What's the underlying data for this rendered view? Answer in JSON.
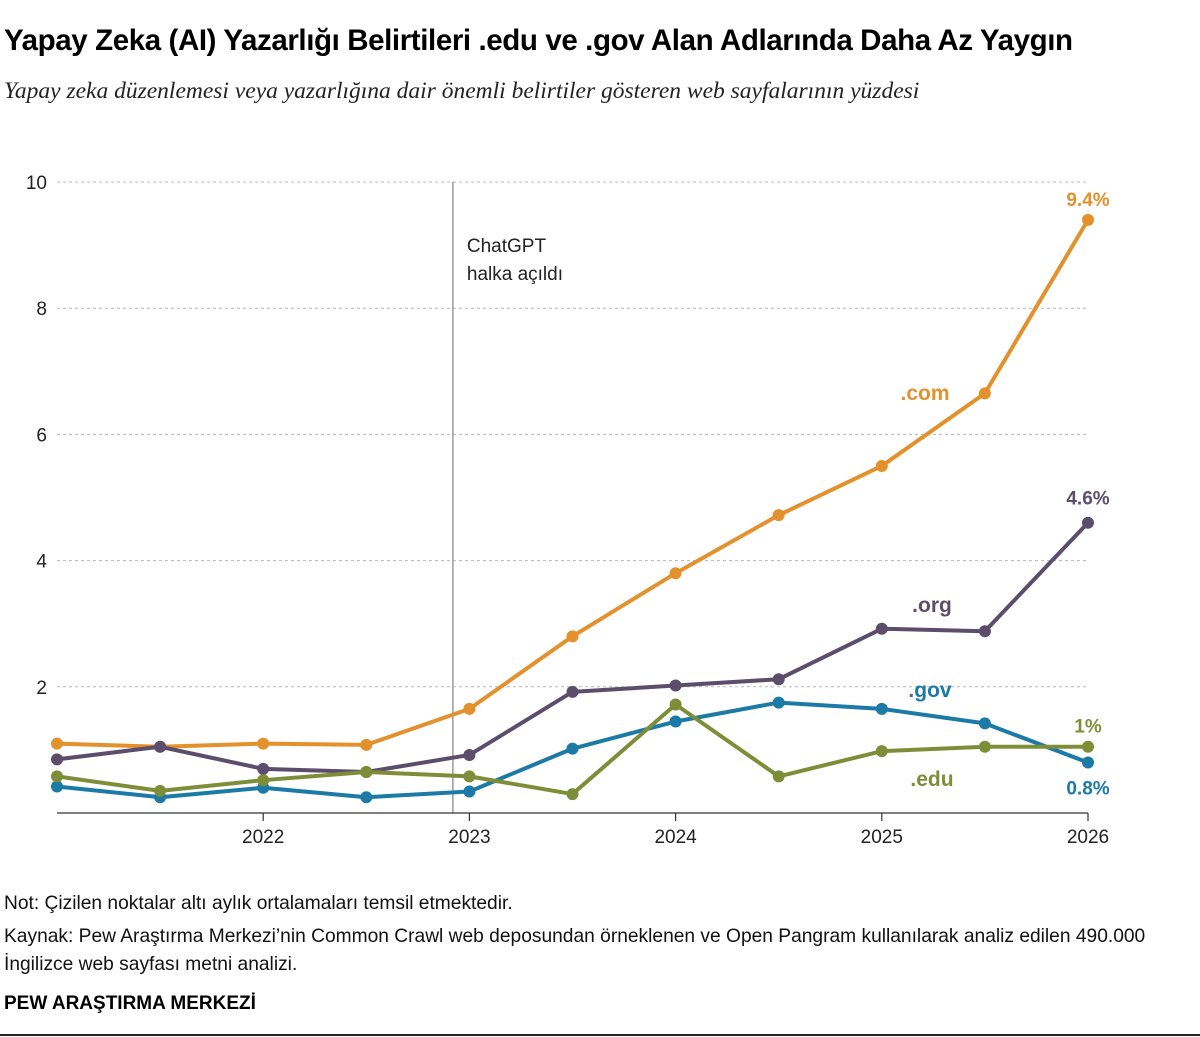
{
  "title": "Yapay Zeka (AI) Yazarlığı Belirtileri .edu ve .gov Alan Adlarında Daha Az Yaygın",
  "subtitle": "Yapay zeka düzenlemesi veya yazarlığına dair önemli belirtiler gösteren web sayfalarının yüzdesi",
  "note": "Not: Çizilen noktalar altı aylık ortalamaları temsil etmektedir.",
  "source": "Kaynak: Pew Araştırma Merkezi’nin Common Crawl web deposundan örneklenen ve Open Pangram kullanılarak analiz edilen 490.000 İngilizce web sayfası metni analizi.",
  "brand": "PEW ARAŞTIRMA MERKEZİ",
  "chart_data": {
    "type": "line",
    "title": "Yapay Zeka (AI) Yazarlığı Belirtileri .edu ve .gov Alan Adlarında Daha Az Yaygın",
    "subtitle": "Yapay zeka düzenlemesi veya yazarlığına dair önemli belirtiler gösteren web sayfalarının yüzdesi",
    "xlabel": "",
    "ylabel": "",
    "xlim": [
      2021,
      2026
    ],
    "ylim": [
      0,
      10
    ],
    "y_ticks": [
      2,
      4,
      6,
      8,
      10
    ],
    "x_ticks": [
      {
        "value": 2022,
        "label": "2022"
      },
      {
        "value": 2023,
        "label": "2023"
      },
      {
        "value": 2024,
        "label": "2024"
      },
      {
        "value": 2025,
        "label": "2025"
      },
      {
        "value": 2026,
        "label": "2026"
      }
    ],
    "grid": "horizontal-dashed",
    "x": [
      2021.0,
      2021.5,
      2022.0,
      2022.5,
      2023.0,
      2023.5,
      2024.0,
      2024.5,
      2025.0,
      2025.5,
      2026.0
    ],
    "series": [
      {
        "name": ".com",
        "color": "#e3912c",
        "values": [
          1.1,
          1.05,
          1.1,
          1.08,
          1.65,
          2.8,
          3.8,
          4.72,
          5.5,
          6.65,
          9.4
        ],
        "end_label": "9.4%"
      },
      {
        "name": ".org",
        "color": "#5b4d6b",
        "values": [
          0.85,
          1.05,
          0.7,
          0.65,
          0.92,
          1.92,
          2.02,
          2.12,
          2.92,
          2.88,
          4.6
        ],
        "end_label": "4.6%"
      },
      {
        "name": ".gov",
        "color": "#1b7aa6",
        "values": [
          0.42,
          0.25,
          0.4,
          0.25,
          0.34,
          1.02,
          1.45,
          1.75,
          1.65,
          1.42,
          0.8
        ],
        "end_label": "0.8%"
      },
      {
        "name": ".edu",
        "color": "#7e8e38",
        "values": [
          0.58,
          0.35,
          0.52,
          0.65,
          0.58,
          0.3,
          1.72,
          0.58,
          0.98,
          1.05,
          1.05
        ],
        "end_label": "1%"
      }
    ],
    "annotations": [
      {
        "x": 2022.92,
        "text_lines": [
          "ChatGPT",
          "halka açıldı"
        ]
      }
    ]
  }
}
